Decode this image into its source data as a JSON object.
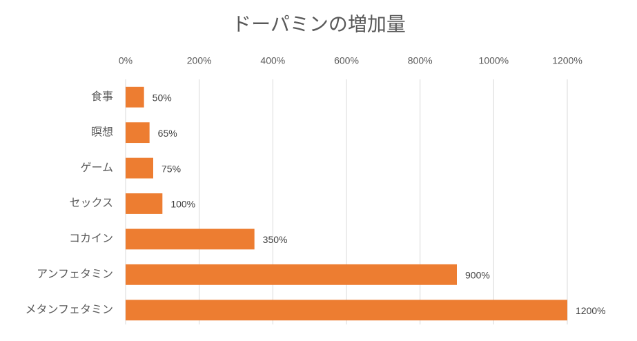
{
  "chart_data": {
    "type": "bar",
    "title": "ドーパミンの増加量",
    "categories": [
      "食事",
      "瞑想",
      "ゲーム",
      "セックス",
      "コカイン",
      "アンフェタミン",
      "メタンフェタミン"
    ],
    "values": [
      50,
      65,
      75,
      100,
      350,
      900,
      1200
    ],
    "value_labels": [
      "50%",
      "65%",
      "75%",
      "100%",
      "350%",
      "900%",
      "1200%"
    ],
    "color": "#ed7d31",
    "xlim": [
      0,
      1200
    ],
    "xticks": [
      {
        "value": 0,
        "label": "0%"
      },
      {
        "value": 200,
        "label": "200%"
      },
      {
        "value": 400,
        "label": "400%"
      },
      {
        "value": 600,
        "label": "600%"
      },
      {
        "value": 800,
        "label": "800%"
      },
      {
        "value": 1000,
        "label": "1000%"
      },
      {
        "value": 1200,
        "label": "1200%"
      }
    ],
    "grid": true
  }
}
